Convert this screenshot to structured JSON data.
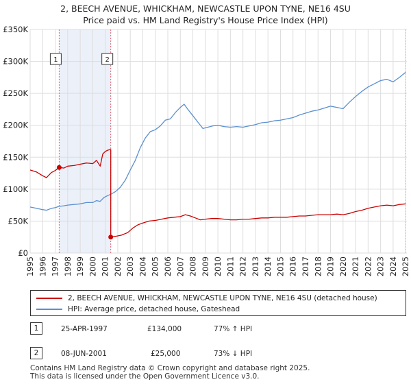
{
  "title_line1": "2, BEECH AVENUE, WHICKHAM, NEWCASTLE UPON TYNE, NE16 4SU",
  "title_line2": "Price paid vs. HM Land Registry's House Price Index (HPI)",
  "colors": {
    "red": "#cc0000",
    "blue": "#5b8fd0",
    "grid": "#dddddd",
    "band": "#dde6f5",
    "vline": "#e06070"
  },
  "legend": {
    "red_label": "2, BEECH AVENUE, WHICKHAM, NEWCASTLE UPON TYNE, NE16 4SU (detached house)",
    "blue_label": "HPI: Average price, detached house, Gateshead"
  },
  "sales": [
    {
      "num": "1",
      "date": "25-APR-1997",
      "price": "£134,000",
      "hpi": "77% ↑ HPI"
    },
    {
      "num": "2",
      "date": "08-JUN-2001",
      "price": "£25,000",
      "hpi": "73% ↓ HPI"
    }
  ],
  "footer_line1": "Contains HM Land Registry data © Crown copyright and database right 2025.",
  "footer_line2": "This data is licensed under the Open Government Licence v3.0.",
  "chart_data": {
    "type": "line",
    "title": "Price paid vs. HM Land Registry's House Price Index (HPI)",
    "xlim": [
      1995,
      2025.1
    ],
    "ylim": [
      0,
      350000
    ],
    "xticks": [
      1995,
      1996,
      1997,
      1998,
      1999,
      2000,
      2001,
      2002,
      2003,
      2004,
      2005,
      2006,
      2007,
      2008,
      2009,
      2010,
      2011,
      2012,
      2013,
      2014,
      2015,
      2016,
      2017,
      2018,
      2019,
      2020,
      2021,
      2022,
      2023,
      2024,
      2025
    ],
    "yticks": [
      0,
      50000,
      100000,
      150000,
      200000,
      250000,
      300000,
      350000
    ],
    "ytick_labels": [
      "£0",
      "£50K",
      "£100K",
      "£150K",
      "£200K",
      "£250K",
      "£300K",
      "£350K"
    ],
    "shaded_region": [
      1997.32,
      2001.44
    ],
    "markers": [
      {
        "label": "1",
        "x": 1997.32,
        "y": 134000
      },
      {
        "label": "2",
        "x": 2001.44,
        "y": 25000
      }
    ],
    "series": [
      {
        "name": "2, BEECH AVENUE, WHICKHAM, NEWCASTLE UPON TYNE, NE16 4SU (detached house)",
        "color": "#cc0000",
        "points": [
          [
            1995.0,
            130000
          ],
          [
            1995.5,
            127000
          ],
          [
            1996.0,
            121000
          ],
          [
            1996.3,
            118000
          ],
          [
            1996.7,
            126000
          ],
          [
            1997.0,
            129000
          ],
          [
            1997.32,
            134000
          ],
          [
            1997.7,
            133000
          ],
          [
            1998.0,
            136000
          ],
          [
            1998.5,
            137000
          ],
          [
            1999.0,
            139000
          ],
          [
            1999.5,
            141000
          ],
          [
            2000.0,
            140000
          ],
          [
            2000.3,
            145000
          ],
          [
            2000.6,
            136000
          ],
          [
            2000.8,
            155000
          ],
          [
            2001.0,
            159000
          ],
          [
            2001.2,
            161000
          ],
          [
            2001.4,
            162000
          ],
          [
            2001.44,
            162000
          ],
          [
            2001.44,
            25000
          ],
          [
            2001.8,
            26000
          ],
          [
            2002.3,
            28000
          ],
          [
            2002.8,
            32000
          ],
          [
            2003.2,
            39000
          ],
          [
            2003.6,
            44000
          ],
          [
            2004.0,
            47000
          ],
          [
            2004.5,
            50000
          ],
          [
            2005.0,
            51000
          ],
          [
            2005.5,
            53000
          ],
          [
            2006.0,
            55000
          ],
          [
            2006.5,
            56000
          ],
          [
            2007.0,
            57000
          ],
          [
            2007.4,
            60000
          ],
          [
            2007.8,
            58000
          ],
          [
            2008.2,
            55000
          ],
          [
            2008.6,
            52000
          ],
          [
            2009.0,
            53000
          ],
          [
            2009.5,
            54000
          ],
          [
            2010.0,
            54000
          ],
          [
            2010.5,
            53000
          ],
          [
            2011.0,
            52000
          ],
          [
            2011.5,
            52000
          ],
          [
            2012.0,
            53000
          ],
          [
            2012.5,
            53000
          ],
          [
            2013.0,
            54000
          ],
          [
            2013.5,
            55000
          ],
          [
            2014.0,
            55000
          ],
          [
            2014.5,
            56000
          ],
          [
            2015.0,
            56000
          ],
          [
            2015.5,
            56000
          ],
          [
            2016.0,
            57000
          ],
          [
            2016.5,
            58000
          ],
          [
            2017.0,
            58000
          ],
          [
            2017.5,
            59000
          ],
          [
            2018.0,
            60000
          ],
          [
            2018.5,
            60000
          ],
          [
            2019.0,
            60000
          ],
          [
            2019.5,
            61000
          ],
          [
            2020.0,
            60000
          ],
          [
            2020.5,
            62000
          ],
          [
            2021.0,
            65000
          ],
          [
            2021.5,
            67000
          ],
          [
            2022.0,
            70000
          ],
          [
            2022.5,
            72000
          ],
          [
            2023.0,
            74000
          ],
          [
            2023.5,
            75000
          ],
          [
            2024.0,
            74000
          ],
          [
            2024.5,
            76000
          ],
          [
            2025.0,
            77000
          ]
        ]
      },
      {
        "name": "HPI: Average price, detached house, Gateshead",
        "color": "#5b8fd0",
        "points": [
          [
            1995.0,
            72000
          ],
          [
            1995.5,
            70000
          ],
          [
            1996.0,
            68000
          ],
          [
            1996.3,
            67000
          ],
          [
            1996.7,
            70000
          ],
          [
            1997.0,
            71000
          ],
          [
            1997.3,
            73000
          ],
          [
            1997.7,
            74000
          ],
          [
            1998.0,
            75000
          ],
          [
            1998.5,
            76000
          ],
          [
            1999.0,
            77000
          ],
          [
            1999.5,
            79000
          ],
          [
            2000.0,
            79000
          ],
          [
            2000.3,
            82000
          ],
          [
            2000.6,
            81000
          ],
          [
            2000.9,
            87000
          ],
          [
            2001.2,
            90000
          ],
          [
            2001.44,
            92000
          ],
          [
            2001.8,
            96000
          ],
          [
            2002.2,
            103000
          ],
          [
            2002.6,
            114000
          ],
          [
            2003.0,
            130000
          ],
          [
            2003.4,
            145000
          ],
          [
            2003.8,
            165000
          ],
          [
            2004.2,
            180000
          ],
          [
            2004.6,
            190000
          ],
          [
            2005.0,
            193000
          ],
          [
            2005.4,
            199000
          ],
          [
            2005.8,
            208000
          ],
          [
            2006.2,
            210000
          ],
          [
            2006.6,
            220000
          ],
          [
            2007.0,
            228000
          ],
          [
            2007.3,
            233000
          ],
          [
            2007.6,
            225000
          ],
          [
            2008.0,
            215000
          ],
          [
            2008.4,
            205000
          ],
          [
            2008.8,
            195000
          ],
          [
            2009.2,
            197000
          ],
          [
            2009.6,
            199000
          ],
          [
            2010.0,
            200000
          ],
          [
            2010.5,
            198000
          ],
          [
            2011.0,
            197000
          ],
          [
            2011.5,
            198000
          ],
          [
            2012.0,
            197000
          ],
          [
            2012.5,
            199000
          ],
          [
            2013.0,
            201000
          ],
          [
            2013.5,
            204000
          ],
          [
            2014.0,
            205000
          ],
          [
            2014.5,
            207000
          ],
          [
            2015.0,
            208000
          ],
          [
            2015.5,
            210000
          ],
          [
            2016.0,
            212000
          ],
          [
            2016.5,
            216000
          ],
          [
            2017.0,
            219000
          ],
          [
            2017.5,
            222000
          ],
          [
            2018.0,
            224000
          ],
          [
            2018.5,
            227000
          ],
          [
            2019.0,
            230000
          ],
          [
            2019.5,
            228000
          ],
          [
            2020.0,
            226000
          ],
          [
            2020.5,
            236000
          ],
          [
            2021.0,
            245000
          ],
          [
            2021.5,
            253000
          ],
          [
            2022.0,
            260000
          ],
          [
            2022.5,
            265000
          ],
          [
            2023.0,
            270000
          ],
          [
            2023.5,
            272000
          ],
          [
            2024.0,
            268000
          ],
          [
            2024.5,
            275000
          ],
          [
            2025.0,
            283000
          ]
        ]
      }
    ]
  }
}
